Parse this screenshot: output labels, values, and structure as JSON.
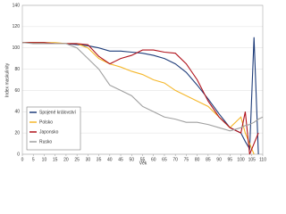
{
  "chart_data": {
    "type": "line",
    "x_label": "Věk",
    "y_label": "Index maskulinity",
    "x": [
      0,
      5,
      10,
      15,
      20,
      25,
      30,
      35,
      40,
      45,
      50,
      55,
      60,
      65,
      70,
      75,
      80,
      85,
      90,
      95,
      100,
      102,
      104,
      106,
      108,
      110
    ],
    "series": [
      {
        "name": "Spojené království",
        "color": "#1f3d7a",
        "values": [
          105,
          105,
          105,
          104,
          104,
          103,
          102,
          100,
          97,
          97,
          96,
          95,
          93,
          90,
          85,
          77,
          65,
          52,
          38,
          25,
          20,
          12,
          5,
          110,
          0,
          null
        ]
      },
      {
        "name": "Polsko",
        "color": "#f5b72a",
        "values": [
          105,
          105,
          105,
          105,
          104,
          104,
          100,
          90,
          85,
          82,
          78,
          75,
          70,
          67,
          60,
          55,
          50,
          45,
          35,
          25,
          35,
          20,
          10,
          0,
          null,
          null
        ]
      },
      {
        "name": "Japonsko",
        "color": "#b0121b",
        "values": [
          105,
          105,
          105,
          104,
          104,
          104,
          103,
          92,
          85,
          90,
          93,
          98,
          98,
          96,
          95,
          85,
          70,
          50,
          35,
          25,
          20,
          40,
          0,
          10,
          20,
          null
        ]
      },
      {
        "name": "Rusko",
        "color": "#a0a0a0",
        "values": [
          105,
          104,
          104,
          104,
          104,
          100,
          90,
          80,
          65,
          60,
          55,
          45,
          40,
          35,
          33,
          30,
          30,
          28,
          25,
          22,
          25,
          27,
          28,
          30,
          33,
          35
        ]
      }
    ],
    "xlim": [
      0,
      110
    ],
    "ylim": [
      0,
      140
    ],
    "xticks": [
      0,
      5,
      10,
      15,
      20,
      25,
      30,
      35,
      40,
      45,
      50,
      55,
      60,
      65,
      70,
      75,
      80,
      85,
      90,
      95,
      100,
      105,
      110
    ],
    "yticks": [
      0,
      20,
      40,
      60,
      80,
      100,
      120,
      140
    ],
    "grid": true,
    "legend": "lower left"
  }
}
